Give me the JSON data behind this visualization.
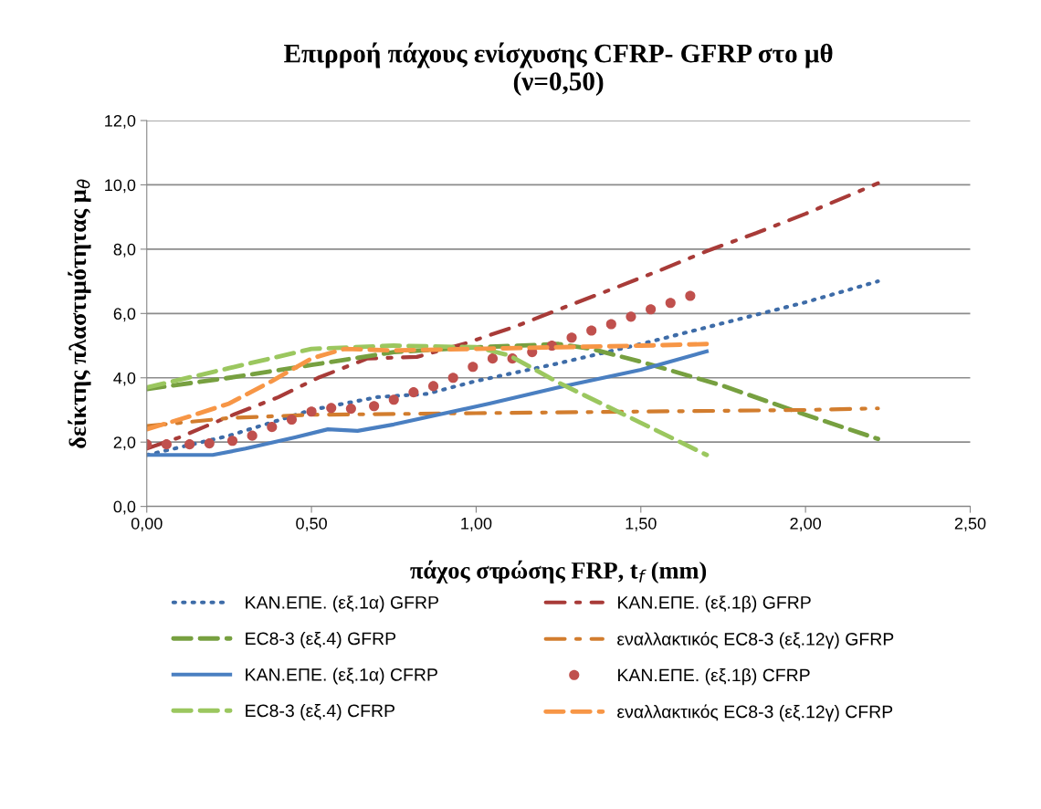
{
  "chart_data": {
    "type": "line",
    "title": "Επιρροή πάχους ενίσχυσης CFRP- GFRP στο μθ\n(ν=0,50)",
    "xlabel": "πάχος στρώσης FRP, t$_{f}$ (mm)",
    "ylabel": "δείκτης πλαστιμότητας μ$_{θ}$",
    "xlim": [
      0,
      2.5
    ],
    "xticks": [
      {
        "value": 0,
        "label": "0,00"
      },
      {
        "value": 0.5,
        "label": "0,50"
      },
      {
        "value": 1,
        "label": "1,00"
      },
      {
        "value": 1.5,
        "label": "1,50"
      },
      {
        "value": 2,
        "label": "2,00"
      },
      {
        "value": 2.5,
        "label": "2,50"
      }
    ],
    "ylim": [
      0,
      12
    ],
    "yticks": [
      {
        "value": 0,
        "label": "0,0"
      },
      {
        "value": 2,
        "label": "2,0"
      },
      {
        "value": 4,
        "label": "4,0"
      },
      {
        "value": 6,
        "label": "6,0"
      },
      {
        "value": 8,
        "label": "8,0"
      },
      {
        "value": 10,
        "label": "10,0"
      },
      {
        "value": 12,
        "label": "12,0"
      }
    ],
    "grid": "y",
    "legend": "bottom",
    "marker": "none",
    "series": [
      {
        "name": "ΚΑΝ.ΕΠΕ. (εξ.1α) GFRP",
        "color": "#3e6ca8",
        "line_style": "dotted",
        "x": [
          0,
          0.25,
          0.5,
          0.7,
          0.85,
          1.0,
          1.25,
          1.5,
          1.75,
          2.0,
          2.22
        ],
        "values": [
          1.6,
          2.2,
          3.0,
          3.4,
          3.5,
          3.9,
          4.45,
          5.05,
          5.7,
          6.35,
          7.0
        ]
      },
      {
        "name": "ΚΑΝ.ΕΠΕ. (εξ.1β) GFRP",
        "color": "#a83b38",
        "line_style": "dashdot",
        "x": [
          0,
          0.1,
          0.25,
          0.4,
          0.52,
          0.67,
          0.82,
          0.97,
          1.12,
          1.27,
          1.41,
          1.56,
          1.7,
          1.85,
          2.0,
          2.22
        ],
        "values": [
          1.8,
          2.15,
          2.8,
          3.4,
          4.0,
          4.6,
          4.65,
          5.08,
          5.6,
          6.2,
          6.75,
          7.35,
          7.94,
          8.5,
          9.1,
          10.05
        ]
      },
      {
        "name": "EC8-3 (εξ.4) GFRP",
        "color": "#77a040",
        "line_style": "dashed",
        "x": [
          0,
          0.25,
          0.5,
          0.75,
          1.0,
          1.25,
          1.35,
          1.5,
          1.75,
          2.0,
          2.22
        ],
        "values": [
          3.65,
          4.0,
          4.4,
          4.8,
          4.95,
          5.05,
          4.9,
          4.5,
          3.75,
          2.85,
          2.1
        ]
      },
      {
        "name": "εναλλακτικός EC8-3 (εξ.12γ) GFRP",
        "color": "#d27d2e",
        "line_style": "dashdot",
        "x": [
          0,
          0.25,
          0.5,
          1.0,
          1.5,
          2.0,
          2.22
        ],
        "values": [
          2.5,
          2.75,
          2.85,
          2.9,
          2.95,
          3.0,
          3.05
        ]
      },
      {
        "name": "ΚΑΝ.ΕΠΕ. (εξ.1α) CFRP",
        "color": "#4a7fc1",
        "line_style": "solid",
        "x": [
          0,
          0.2,
          0.3,
          0.45,
          0.55,
          0.64,
          0.75,
          1.04,
          1.25,
          1.5,
          1.7
        ],
        "values": [
          1.6,
          1.6,
          1.8,
          2.15,
          2.4,
          2.35,
          2.55,
          3.2,
          3.7,
          4.25,
          4.82
        ]
      },
      {
        "name": "ΚΑΝ.ΕΠΕ. (εξ.1β) CFRP",
        "color": "#c0504d",
        "type": "scatter",
        "marker": "circle",
        "x": [
          0,
          0.06,
          0.13,
          0.19,
          0.26,
          0.32,
          0.38,
          0.44,
          0.5,
          0.56,
          0.62,
          0.69,
          0.75,
          0.81,
          0.87,
          0.93,
          0.99,
          1.05,
          1.11,
          1.17,
          1.23,
          1.29,
          1.35,
          1.41,
          1.47,
          1.53,
          1.59,
          1.65
        ],
        "values": [
          1.93,
          1.93,
          1.93,
          1.96,
          2.04,
          2.2,
          2.47,
          2.7,
          2.95,
          3.06,
          3.04,
          3.12,
          3.32,
          3.55,
          3.74,
          4.0,
          4.34,
          4.6,
          4.6,
          4.8,
          5.0,
          5.25,
          5.47,
          5.67,
          5.9,
          6.13,
          6.33,
          6.55
        ]
      },
      {
        "name": "EC8-3 (εξ.4) CFRP",
        "color": "#9bc75f",
        "line_style": "dashed",
        "x": [
          0,
          0.25,
          0.5,
          0.75,
          1.0,
          1.1,
          1.25,
          1.5,
          1.7
        ],
        "values": [
          3.7,
          4.3,
          4.9,
          5.0,
          4.95,
          4.7,
          3.85,
          2.6,
          1.6
        ]
      },
      {
        "name": "εναλλακτικός EC8-3 (εξ.12γ) CFRP",
        "color": "#f79646",
        "line_style": "dashed",
        "x": [
          0,
          0.13,
          0.25,
          0.38,
          0.5,
          0.6,
          0.75,
          1.0,
          1.25,
          1.5,
          1.7
        ],
        "values": [
          2.4,
          2.8,
          3.2,
          3.9,
          4.6,
          4.9,
          4.85,
          4.9,
          4.95,
          5.0,
          5.05
        ]
      }
    ]
  }
}
